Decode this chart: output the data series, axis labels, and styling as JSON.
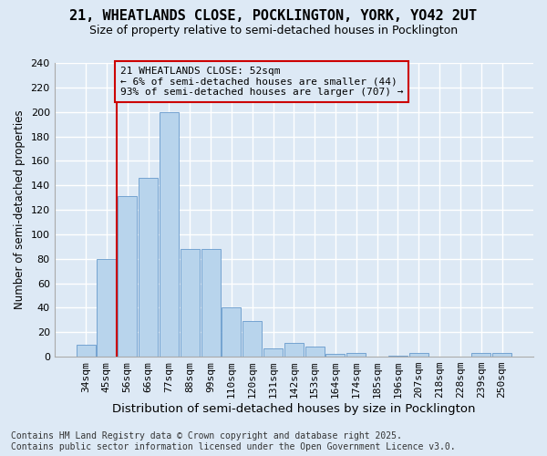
{
  "title": "21, WHEATLANDS CLOSE, POCKLINGTON, YORK, YO42 2UT",
  "subtitle": "Size of property relative to semi-detached houses in Pocklington",
  "xlabel": "Distribution of semi-detached houses by size in Pocklington",
  "ylabel": "Number of semi-detached properties",
  "categories": [
    "34sqm",
    "45sqm",
    "56sqm",
    "66sqm",
    "77sqm",
    "88sqm",
    "99sqm",
    "110sqm",
    "120sqm",
    "131sqm",
    "142sqm",
    "153sqm",
    "164sqm",
    "174sqm",
    "185sqm",
    "196sqm",
    "207sqm",
    "218sqm",
    "228sqm",
    "239sqm",
    "250sqm"
  ],
  "values": [
    10,
    80,
    131,
    146,
    200,
    88,
    88,
    40,
    29,
    7,
    11,
    8,
    2,
    3,
    0,
    1,
    3,
    0,
    0,
    3,
    3
  ],
  "bar_color": "#b8d4ec",
  "bar_edge_color": "#6699cc",
  "background_color": "#dde9f5",
  "plot_bg_color": "#dde9f5",
  "grid_color": "#ffffff",
  "ylim": [
    0,
    240
  ],
  "yticks": [
    0,
    20,
    40,
    60,
    80,
    100,
    120,
    140,
    160,
    180,
    200,
    220,
    240
  ],
  "property_label": "21 WHEATLANDS CLOSE: 52sqm",
  "pct_smaller": 6,
  "count_smaller": 44,
  "pct_larger": 93,
  "count_larger": 707,
  "vline_color": "#cc0000",
  "annot_edge_color": "#cc0000",
  "footer_line1": "Contains HM Land Registry data © Crown copyright and database right 2025.",
  "footer_line2": "Contains public sector information licensed under the Open Government Licence v3.0.",
  "title_fontsize": 11,
  "subtitle_fontsize": 9,
  "xlabel_fontsize": 9.5,
  "ylabel_fontsize": 8.5,
  "tick_fontsize": 8,
  "annot_fontsize": 8,
  "footer_fontsize": 7
}
